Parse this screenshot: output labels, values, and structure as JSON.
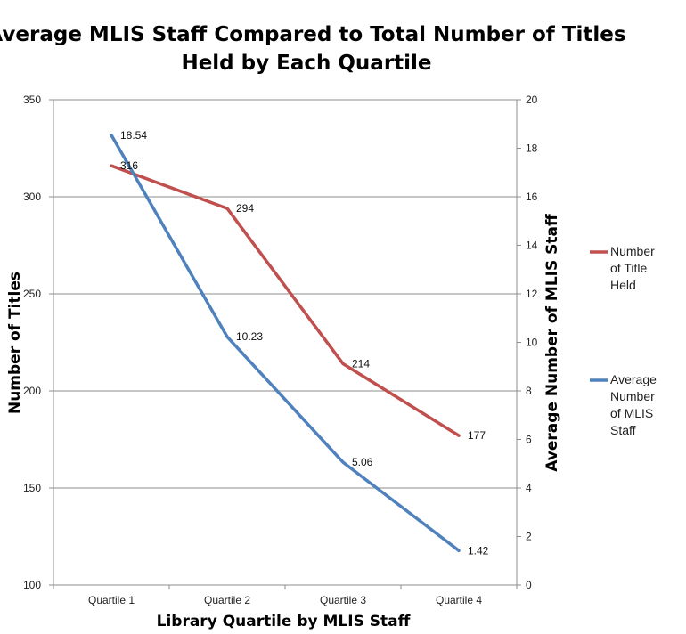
{
  "chart_data": {
    "type": "line",
    "title_lines": [
      "Average MLIS Staff Compared to Total Number of Titles",
      "Held by Each Quartile"
    ],
    "xlabel": "Library Quartile by MLIS Staff",
    "ylabel_left": "Number of Titles",
    "ylabel_right": "Average Number of MLIS Staff",
    "categories": [
      "Quartile 1",
      "Quartile 2",
      "Quartile 3",
      "Quartile 4"
    ],
    "y_left": {
      "min": 100,
      "max": 350,
      "step": 50,
      "ticks": [
        "100",
        "150",
        "200",
        "250",
        "300",
        "350"
      ]
    },
    "y_right": {
      "min": 0,
      "max": 20,
      "step": 2,
      "ticks": [
        "0",
        "2",
        "4",
        "6",
        "8",
        "10",
        "12",
        "14",
        "16",
        "18",
        "20"
      ]
    },
    "grid": true,
    "legend_position": "right",
    "series": [
      {
        "name_lines": [
          "Number",
          "of Title",
          "Held"
        ],
        "axis": "left",
        "color": "#c0504d",
        "values": [
          316,
          294,
          214,
          177
        ],
        "labels": [
          "316",
          "294",
          "214",
          "177"
        ]
      },
      {
        "name_lines": [
          "Average",
          "Number",
          "of MLIS",
          "Staff"
        ],
        "axis": "right",
        "color": "#4f81bd",
        "values": [
          18.54,
          10.23,
          5.06,
          1.42
        ],
        "labels": [
          "18.54",
          "10.23",
          "5.06",
          "1.42"
        ]
      }
    ]
  }
}
